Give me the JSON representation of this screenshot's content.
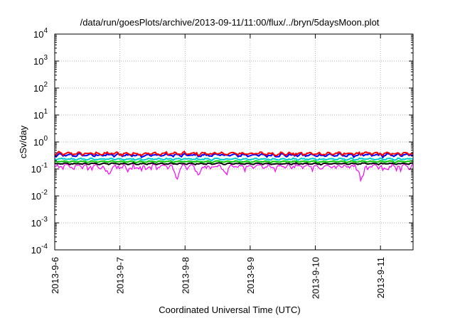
{
  "chart_data": {
    "type": "line",
    "title": "/data/run/goesPlots/archive/2013-09-11/11:00/flux/../bryn/5daysMoon.plot",
    "xlabel": "Coordinated Universal Time (UTC)",
    "ylabel": "cSv/day",
    "yscale": "log",
    "ylim": [
      0.0001,
      10000
    ],
    "xlim": [
      "2013-09-06",
      "2013-09-11 12:00"
    ],
    "xticks": [
      "2013-9-6",
      "2013-9-7",
      "2013-9-8",
      "2013-9-9",
      "2013-9-10",
      "2013-9-11"
    ],
    "yticks": [
      {
        "base": "10",
        "exp": "-4"
      },
      {
        "base": "10",
        "exp": "-3"
      },
      {
        "base": "10",
        "exp": "-2"
      },
      {
        "base": "10",
        "exp": "-1"
      },
      {
        "base": "10",
        "exp": "0"
      },
      {
        "base": "10",
        "exp": "1"
      },
      {
        "base": "10",
        "exp": "2"
      },
      {
        "base": "10",
        "exp": "3"
      },
      {
        "base": "10",
        "exp": "4"
      }
    ],
    "grid": true,
    "dips": [
      {
        "x": "2013-09-06 20:00",
        "y": 0.06
      },
      {
        "x": "2013-09-07 21:00",
        "y": 0.035
      },
      {
        "x": "2013-09-08 05:00",
        "y": 0.055
      },
      {
        "x": "2013-09-08 15:00",
        "y": 0.07
      },
      {
        "x": "2013-09-10 17:00",
        "y": 0.04
      }
    ],
    "series": [
      {
        "color": "#ff00ff",
        "base": 0.11,
        "amplitude": 0.35
      },
      {
        "color": "#000000",
        "base": 0.15,
        "amplitude": 0.1
      },
      {
        "color": "#00cc00",
        "base": 0.18,
        "amplitude": 0.1
      },
      {
        "color": "#00cccc",
        "base": 0.22,
        "amplitude": 0.12
      },
      {
        "color": "#0000ff",
        "base": 0.3,
        "amplitude": 0.2
      },
      {
        "color": "#ff0000",
        "base": 0.34,
        "amplitude": 0.22
      }
    ]
  }
}
